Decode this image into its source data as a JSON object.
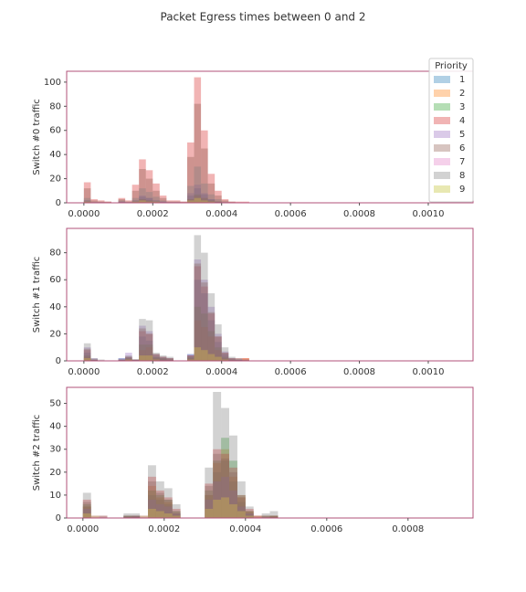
{
  "title": "Packet Egress times between 0 and 2",
  "legend": {
    "title": "Priority",
    "corner": "upper right"
  },
  "chart_data": [
    {
      "type": "histogram",
      "ylabel": "Switch #0 traffic",
      "bins": [
        0,
        2e-05,
        4e-05,
        6e-05,
        8e-05,
        0.0001,
        0.00012,
        0.00014,
        0.00016,
        0.00018,
        0.0002,
        0.00022,
        0.00024,
        0.00026,
        0.00028,
        0.0003,
        0.00032,
        0.00034,
        0.00036,
        0.00038,
        0.0004,
        0.00042,
        0.00044,
        0.00046,
        0.00048
      ],
      "xlim": [
        -5e-05,
        0.00113
      ],
      "ylim": [
        0,
        109
      ],
      "xticks": [
        {
          "value": 0,
          "label": "0.0000"
        },
        {
          "value": 0.0002,
          "label": "0.0002"
        },
        {
          "value": 0.0004,
          "label": "0.0004"
        },
        {
          "value": 0.0006,
          "label": "0.0006"
        },
        {
          "value": 0.0008,
          "label": "0.0008"
        },
        {
          "value": 0.001,
          "label": "0.0010"
        }
      ],
      "yticks": [
        0,
        20,
        40,
        60,
        80,
        100
      ],
      "series": [
        {
          "name": "1",
          "color": "#1f77b4",
          "values": [
            2,
            0,
            0,
            0,
            0,
            1,
            0,
            2,
            5,
            4,
            2,
            1,
            0,
            0,
            0,
            6,
            12,
            7,
            3,
            1,
            0,
            0,
            0,
            0
          ]
        },
        {
          "name": "2",
          "color": "#ff7f0e",
          "values": [
            1,
            0,
            0,
            0,
            0,
            0,
            0,
            1,
            3,
            2,
            1,
            0,
            0,
            0,
            0,
            3,
            6,
            4,
            2,
            1,
            0,
            0,
            0,
            0
          ]
        },
        {
          "name": "3",
          "color": "#2ca02c",
          "values": [
            1,
            0,
            0,
            0,
            0,
            0,
            0,
            1,
            3,
            2,
            1,
            0,
            0,
            0,
            0,
            3,
            7,
            4,
            2,
            1,
            0,
            0,
            0,
            0
          ]
        },
        {
          "name": "4",
          "color": "#d62728",
          "values": [
            17,
            3,
            2,
            1,
            0,
            4,
            2,
            15,
            36,
            27,
            16,
            6,
            2,
            2,
            1,
            50,
            104,
            60,
            24,
            10,
            3,
            1,
            1,
            1
          ]
        },
        {
          "name": "5",
          "color": "#9467bd",
          "values": [
            2,
            0,
            0,
            0,
            0,
            1,
            0,
            2,
            6,
            4,
            2,
            1,
            0,
            0,
            0,
            8,
            15,
            8,
            3,
            1,
            0,
            0,
            0,
            0
          ]
        },
        {
          "name": "6",
          "color": "#8c564b",
          "values": [
            12,
            2,
            1,
            1,
            0,
            3,
            1,
            10,
            28,
            20,
            10,
            4,
            1,
            1,
            1,
            38,
            82,
            45,
            16,
            6,
            2,
            1,
            0,
            0
          ]
        },
        {
          "name": "7",
          "color": "#e377c2",
          "values": [
            1,
            0,
            0,
            0,
            0,
            0,
            0,
            1,
            2,
            1,
            1,
            0,
            0,
            0,
            0,
            2,
            4,
            2,
            1,
            0,
            0,
            0,
            0,
            0
          ]
        },
        {
          "name": "8",
          "color": "#7f7f7f",
          "values": [
            4,
            1,
            1,
            0,
            0,
            2,
            1,
            4,
            12,
            9,
            5,
            2,
            1,
            1,
            0,
            14,
            30,
            16,
            7,
            3,
            1,
            0,
            0,
            0
          ]
        },
        {
          "name": "9",
          "color": "#bcbd22",
          "values": [
            1,
            0,
            0,
            0,
            0,
            0,
            0,
            1,
            2,
            1,
            1,
            0,
            0,
            0,
            0,
            2,
            4,
            2,
            1,
            0,
            0,
            0,
            0,
            0
          ]
        }
      ]
    },
    {
      "type": "histogram",
      "ylabel": "Switch #1 traffic",
      "bins": [
        0,
        2e-05,
        4e-05,
        6e-05,
        8e-05,
        0.0001,
        0.00012,
        0.00014,
        0.00016,
        0.00018,
        0.0002,
        0.00022,
        0.00024,
        0.00026,
        0.00028,
        0.0003,
        0.00032,
        0.00034,
        0.00036,
        0.00038,
        0.0004,
        0.00042,
        0.00044,
        0.00046,
        0.00048
      ],
      "xlim": [
        -5e-05,
        0.00113
      ],
      "ylim": [
        0,
        98
      ],
      "xticks": [
        {
          "value": 0,
          "label": "0.0000"
        },
        {
          "value": 0.0002,
          "label": "0.0002"
        },
        {
          "value": 0.0004,
          "label": "0.0004"
        },
        {
          "value": 0.0006,
          "label": "0.0006"
        },
        {
          "value": 0.0008,
          "label": "0.0008"
        },
        {
          "value": 0.001,
          "label": "0.0010"
        }
      ],
      "yticks": [
        0,
        20,
        40,
        60,
        80
      ],
      "series": [
        {
          "name": "1",
          "color": "#1f77b4",
          "values": [
            6,
            1,
            0,
            0,
            0,
            2,
            3,
            1,
            18,
            15,
            3,
            2,
            1,
            0,
            0,
            5,
            60,
            50,
            30,
            14,
            5,
            1,
            1,
            0
          ]
        },
        {
          "name": "2",
          "color": "#ff7f0e",
          "values": [
            3,
            0,
            0,
            0,
            0,
            0,
            1,
            0,
            8,
            10,
            2,
            1,
            1,
            0,
            0,
            2,
            30,
            25,
            18,
            8,
            2,
            1,
            0,
            2
          ]
        },
        {
          "name": "3",
          "color": "#2ca02c",
          "values": [
            4,
            1,
            0,
            0,
            0,
            1,
            2,
            1,
            12,
            12,
            3,
            2,
            1,
            0,
            0,
            3,
            40,
            35,
            22,
            10,
            3,
            1,
            1,
            0
          ]
        },
        {
          "name": "4",
          "color": "#d62728",
          "values": [
            8,
            1,
            0,
            0,
            0,
            1,
            3,
            1,
            22,
            20,
            5,
            3,
            2,
            0,
            0,
            4,
            70,
            55,
            35,
            18,
            6,
            2,
            2,
            2
          ]
        },
        {
          "name": "5",
          "color": "#9467bd",
          "values": [
            10,
            2,
            0,
            0,
            0,
            2,
            6,
            1,
            26,
            22,
            5,
            3,
            2,
            0,
            0,
            5,
            75,
            60,
            40,
            20,
            7,
            2,
            1,
            0
          ]
        },
        {
          "name": "6",
          "color": "#8c564b",
          "values": [
            9,
            1,
            0,
            0,
            0,
            1,
            3,
            1,
            24,
            20,
            5,
            3,
            2,
            0,
            0,
            4,
            72,
            58,
            36,
            18,
            6,
            2,
            1,
            1
          ]
        },
        {
          "name": "7",
          "color": "#e377c2",
          "values": [
            2,
            0,
            0,
            0,
            0,
            0,
            1,
            0,
            4,
            4,
            1,
            0,
            0,
            0,
            0,
            1,
            10,
            8,
            5,
            3,
            1,
            0,
            0,
            0
          ]
        },
        {
          "name": "8",
          "color": "#7f7f7f",
          "values": [
            13,
            2,
            1,
            0,
            0,
            1,
            4,
            1,
            31,
            30,
            6,
            4,
            3,
            0,
            0,
            3,
            93,
            80,
            50,
            27,
            10,
            3,
            2,
            1
          ]
        },
        {
          "name": "9",
          "color": "#bcbd22",
          "values": [
            2,
            0,
            0,
            0,
            0,
            0,
            1,
            0,
            4,
            4,
            1,
            0,
            0,
            0,
            0,
            1,
            10,
            8,
            5,
            3,
            1,
            0,
            0,
            0
          ]
        }
      ]
    },
    {
      "type": "histogram",
      "ylabel": "Switch #2 traffic",
      "bins": [
        0,
        2e-05,
        4e-05,
        6e-05,
        8e-05,
        0.0001,
        0.00012,
        0.00014,
        0.00016,
        0.00018,
        0.0002,
        0.00022,
        0.00024,
        0.00026,
        0.00028,
        0.0003,
        0.00032,
        0.00034,
        0.00036,
        0.00038,
        0.0004,
        0.00042,
        0.00044,
        0.00046,
        0.00048
      ],
      "xlim": [
        -4e-05,
        0.00096
      ],
      "ylim": [
        0,
        57
      ],
      "xticks": [
        {
          "value": 0,
          "label": "0.0000"
        },
        {
          "value": 0.0002,
          "label": "0.0002"
        },
        {
          "value": 0.0004,
          "label": "0.0004"
        },
        {
          "value": 0.0006,
          "label": "0.0006"
        },
        {
          "value": 0.0008,
          "label": "0.0008"
        }
      ],
      "yticks": [
        0,
        10,
        20,
        30,
        40,
        50
      ],
      "series": [
        {
          "name": "1",
          "color": "#1f77b4",
          "values": [
            5,
            0,
            0,
            0,
            0,
            1,
            1,
            0,
            10,
            8,
            6,
            2,
            0,
            0,
            0,
            10,
            20,
            25,
            16,
            7,
            2,
            0,
            0,
            1
          ]
        },
        {
          "name": "2",
          "color": "#ff7f0e",
          "values": [
            5,
            1,
            0,
            0,
            0,
            0,
            1,
            1,
            14,
            9,
            7,
            2,
            0,
            0,
            0,
            10,
            24,
            30,
            18,
            9,
            3,
            1,
            0,
            1
          ]
        },
        {
          "name": "3",
          "color": "#2ca02c",
          "values": [
            6,
            0,
            0,
            0,
            0,
            1,
            1,
            0,
            12,
            10,
            8,
            3,
            0,
            0,
            0,
            12,
            25,
            35,
            25,
            10,
            3,
            0,
            1,
            1
          ]
        },
        {
          "name": "4",
          "color": "#d62728",
          "values": [
            8,
            0,
            1,
            0,
            0,
            1,
            1,
            0,
            18,
            12,
            9,
            4,
            0,
            0,
            0,
            15,
            30,
            28,
            22,
            10,
            4,
            1,
            1,
            1
          ]
        },
        {
          "name": "5",
          "color": "#9467bd",
          "values": [
            4,
            0,
            0,
            0,
            0,
            0,
            1,
            0,
            8,
            6,
            5,
            2,
            0,
            0,
            0,
            8,
            16,
            18,
            12,
            5,
            2,
            0,
            0,
            0
          ]
        },
        {
          "name": "6",
          "color": "#8c564b",
          "values": [
            7,
            0,
            0,
            0,
            0,
            1,
            1,
            0,
            16,
            11,
            8,
            3,
            0,
            0,
            0,
            14,
            28,
            26,
            20,
            9,
            3,
            0,
            1,
            1
          ]
        },
        {
          "name": "7",
          "color": "#e377c2",
          "values": [
            2,
            0,
            0,
            0,
            0,
            0,
            0,
            0,
            4,
            3,
            2,
            1,
            0,
            0,
            0,
            4,
            8,
            9,
            6,
            3,
            1,
            0,
            0,
            0
          ]
        },
        {
          "name": "8",
          "color": "#7f7f7f",
          "values": [
            11,
            1,
            1,
            0,
            0,
            2,
            2,
            1,
            23,
            16,
            13,
            6,
            0,
            0,
            0,
            22,
            55,
            48,
            36,
            16,
            5,
            1,
            2,
            3
          ]
        },
        {
          "name": "9",
          "color": "#bcbd22",
          "values": [
            2,
            0,
            0,
            0,
            0,
            0,
            0,
            0,
            4,
            3,
            2,
            1,
            0,
            0,
            0,
            4,
            8,
            9,
            6,
            3,
            1,
            0,
            0,
            0
          ]
        }
      ]
    }
  ]
}
